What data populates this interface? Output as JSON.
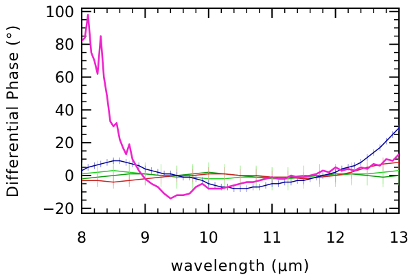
{
  "chart_data": {
    "type": "line",
    "title": "",
    "xlabel": "wavelength (μm)",
    "ylabel": "Differential Phase (°)",
    "xlim": [
      8,
      13
    ],
    "ylim": [
      -23,
      102
    ],
    "x_ticks": [
      8,
      9,
      10,
      11,
      12,
      13
    ],
    "x_tick_labels": [
      "8",
      "9",
      "10",
      "11",
      "12",
      "13"
    ],
    "y_ticks": [
      -20,
      0,
      20,
      40,
      60,
      80,
      100
    ],
    "y_tick_labels": [
      "−20",
      "0",
      "20",
      "40",
      "60",
      "80",
      "100"
    ],
    "x_minor_step": 0.2,
    "y_minor_step": 5,
    "grid": false,
    "series": [
      {
        "name": "green-1",
        "color": "#22cc22",
        "error_color": "#88ee77",
        "error_bar": 7,
        "x": [
          8.0,
          8.25,
          8.5,
          8.75,
          9.0,
          9.25,
          9.5,
          9.75,
          10.0,
          10.25,
          10.5,
          10.75,
          11.0,
          11.25,
          11.5,
          11.75,
          12.0,
          12.25,
          12.5,
          12.75,
          13.0
        ],
        "values": [
          1,
          2,
          3,
          2,
          1,
          0,
          -1,
          -1,
          -2,
          -2,
          -1,
          -1,
          -2,
          -2,
          -1,
          0,
          0,
          1,
          1,
          2,
          3
        ]
      },
      {
        "name": "green-2",
        "color": "#119911",
        "error_color": "#99ee88",
        "error_bar": 6,
        "x": [
          8.0,
          8.25,
          8.5,
          8.75,
          9.0,
          9.25,
          9.5,
          9.75,
          10.0,
          10.25,
          10.5,
          10.75,
          11.0,
          11.25,
          11.5,
          11.75,
          12.0,
          12.25,
          12.5,
          12.75,
          13.0
        ],
        "values": [
          -2,
          -1,
          0,
          1,
          1,
          0,
          0,
          1,
          2,
          1,
          0,
          -1,
          -1,
          -1,
          0,
          0,
          1,
          1,
          0,
          -1,
          0
        ]
      },
      {
        "name": "red",
        "color": "#cc2222",
        "error_color": "#ee9999",
        "error_bar": 4,
        "x": [
          8.0,
          8.25,
          8.5,
          8.75,
          9.0,
          9.25,
          9.5,
          9.75,
          10.0,
          10.25,
          10.5,
          10.75,
          11.0,
          11.25,
          11.5,
          11.75,
          12.0,
          12.25,
          12.5,
          12.75,
          13.0
        ],
        "values": [
          -3,
          -3,
          -4,
          -3,
          -2,
          -1,
          0,
          0,
          1,
          1,
          0,
          0,
          -1,
          -1,
          -2,
          -1,
          0,
          2,
          5,
          7,
          8
        ]
      },
      {
        "name": "blue",
        "color": "#000099",
        "error_color": "#6666cc",
        "error_bar": 2,
        "x": [
          8.0,
          8.1,
          8.2,
          8.3,
          8.4,
          8.5,
          8.6,
          8.7,
          8.8,
          8.9,
          9.0,
          9.1,
          9.2,
          9.3,
          9.4,
          9.5,
          9.6,
          9.7,
          9.8,
          9.9,
          10.0,
          10.1,
          10.2,
          10.3,
          10.4,
          10.5,
          10.6,
          10.7,
          10.8,
          10.9,
          11.0,
          11.1,
          11.2,
          11.3,
          11.4,
          11.5,
          11.6,
          11.7,
          11.8,
          11.9,
          12.0,
          12.1,
          12.2,
          12.3,
          12.4,
          12.5,
          12.6,
          12.7,
          12.8,
          12.9,
          13.0
        ],
        "values": [
          3,
          5,
          6,
          7,
          8,
          9,
          9,
          8,
          7,
          6,
          4,
          3,
          2,
          1,
          1,
          0,
          -1,
          -1,
          -2,
          -3,
          -5,
          -6,
          -7,
          -7,
          -8,
          -8,
          -8,
          -7,
          -7,
          -6,
          -5,
          -5,
          -4,
          -4,
          -3,
          -3,
          -2,
          -1,
          0,
          1,
          2,
          4,
          5,
          6,
          8,
          11,
          14,
          17,
          21,
          25,
          29
        ]
      },
      {
        "name": "magenta",
        "color": "#ee22cc",
        "error_color": "#ee22cc",
        "error_bar": 0,
        "x": [
          8.0,
          8.05,
          8.1,
          8.15,
          8.2,
          8.25,
          8.3,
          8.35,
          8.4,
          8.45,
          8.5,
          8.55,
          8.6,
          8.65,
          8.7,
          8.75,
          8.8,
          8.9,
          9.0,
          9.1,
          9.2,
          9.3,
          9.4,
          9.5,
          9.6,
          9.7,
          9.8,
          9.9,
          10.0,
          10.1,
          10.2,
          10.3,
          10.4,
          10.5,
          10.6,
          10.7,
          10.8,
          10.9,
          11.0,
          11.1,
          11.2,
          11.3,
          11.4,
          11.5,
          11.6,
          11.7,
          11.8,
          11.9,
          12.0,
          12.1,
          12.2,
          12.3,
          12.4,
          12.5,
          12.6,
          12.7,
          12.8,
          12.9,
          13.0
        ],
        "values": [
          82,
          84,
          98,
          75,
          70,
          62,
          85,
          60,
          48,
          33,
          30,
          32,
          22,
          17,
          13,
          19,
          10,
          3,
          -2,
          -5,
          -7,
          -11,
          -14,
          -12,
          -12,
          -11,
          -7,
          -5,
          -8,
          -8,
          -8,
          -7,
          -6,
          -5,
          -4,
          -4,
          -3,
          -2,
          -1,
          -2,
          -2,
          0,
          -1,
          -1,
          0,
          1,
          3,
          2,
          5,
          3,
          4,
          3,
          5,
          4,
          7,
          6,
          10,
          9,
          13
        ]
      }
    ]
  }
}
